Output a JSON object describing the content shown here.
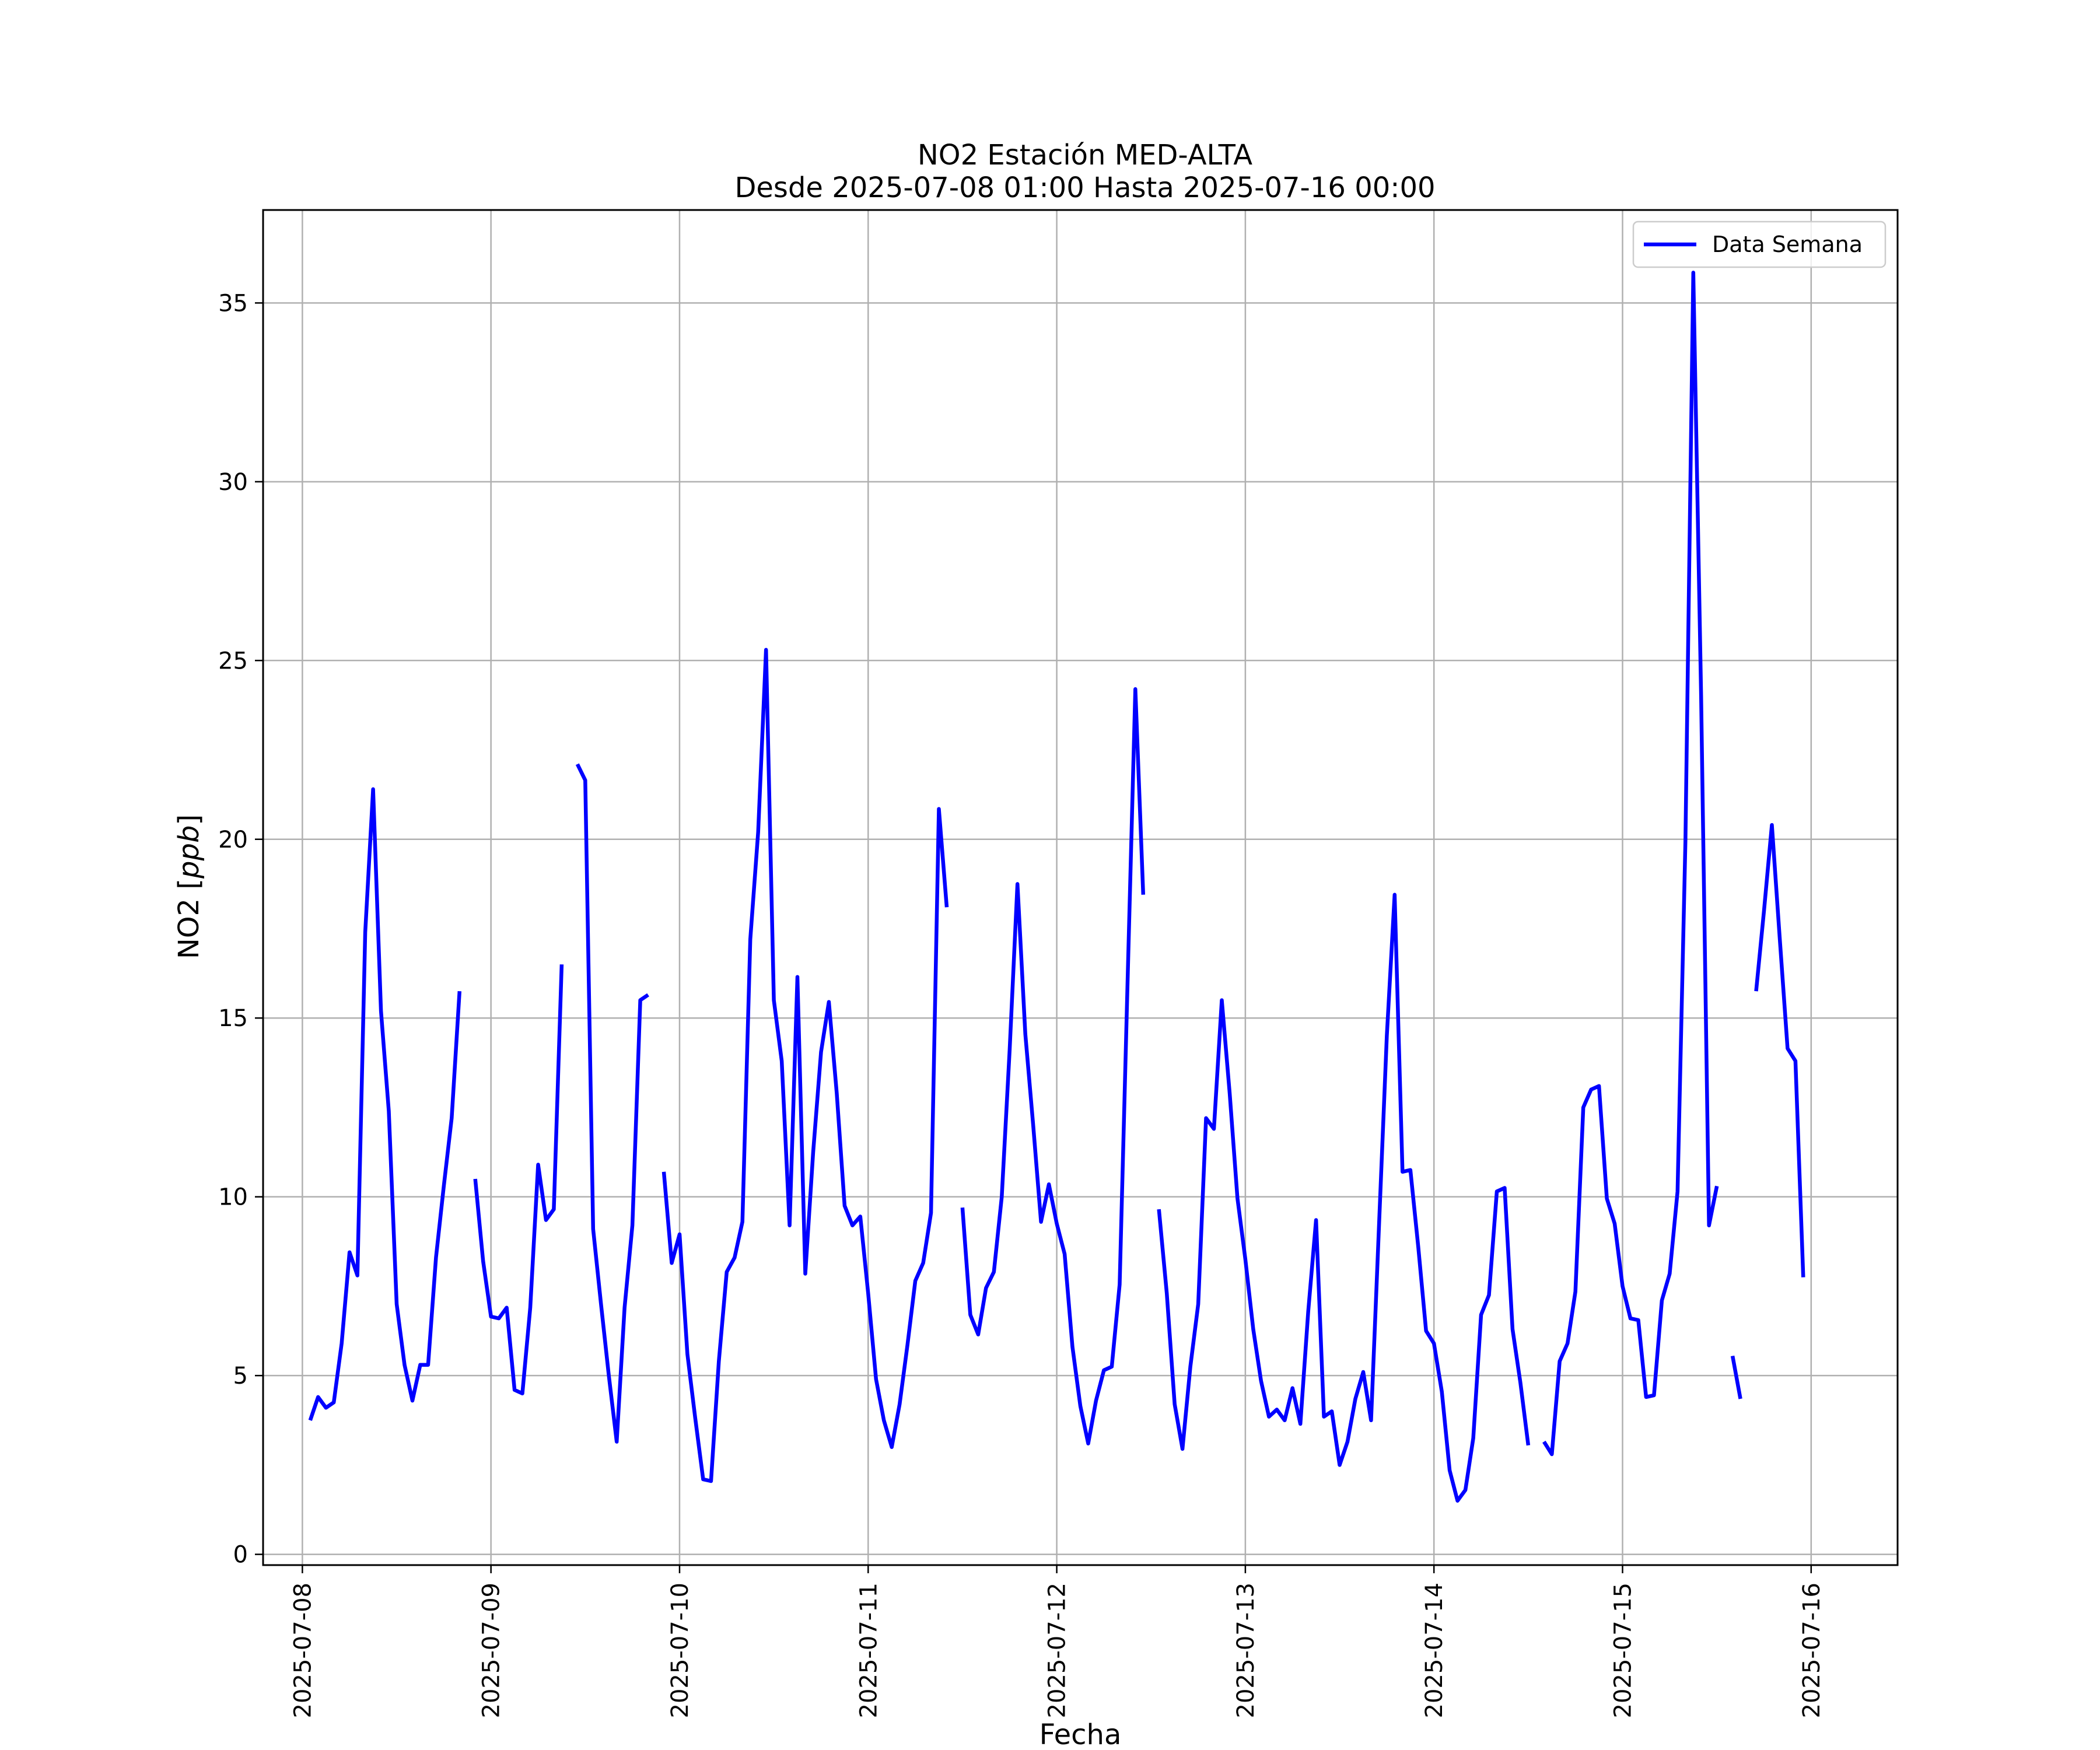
{
  "chart_data": {
    "type": "line",
    "title": "NO2 Estación MED-ALTA",
    "subtitle": "Desde 2025-07-08 01:00 Hasta 2025-07-16 00:00",
    "xlabel": "Fecha",
    "ylabel_text": "NO2 ",
    "ylabel_unit": "ppb",
    "xlim": [
      "2025-07-07 19:00",
      "2025-07-16 11:00"
    ],
    "ylim": [
      -0.3,
      37.6
    ],
    "x_ticks": [
      "2025-07-08",
      "2025-07-09",
      "2025-07-10",
      "2025-07-11",
      "2025-07-12",
      "2025-07-13",
      "2025-07-14",
      "2025-07-15",
      "2025-07-16"
    ],
    "y_ticks": [
      "0",
      "5",
      "10",
      "15",
      "20",
      "25",
      "30",
      "35"
    ],
    "y_tick_values": [
      0,
      5,
      10,
      15,
      20,
      25,
      30,
      35
    ],
    "grid": true,
    "legend_position": "top-right",
    "series": [
      {
        "name": "Data Semana",
        "color": "#0000ff",
        "start": "2025-07-08 01:00",
        "step_hours": 1,
        "values": [
          3.75,
          4.4,
          4.1,
          4.25,
          5.9,
          8.45,
          7.8,
          17.4,
          21.4,
          15.2,
          12.4,
          7.0,
          5.3,
          4.3,
          5.3,
          5.3,
          8.3,
          10.3,
          12.2,
          15.75,
          null,
          10.5,
          8.2,
          6.65,
          6.6,
          6.9,
          4.6,
          4.5,
          6.9,
          10.9,
          9.35,
          9.65,
          16.5,
          null,
          22.1,
          21.65,
          9.1,
          7.0,
          5.0,
          3.15,
          6.9,
          9.2,
          15.5,
          15.65,
          null,
          10.7,
          8.15,
          8.95,
          5.6,
          3.8,
          2.1,
          2.05,
          5.4,
          7.9,
          8.3,
          9.3,
          17.2,
          20.2,
          25.3,
          15.5,
          13.8,
          9.2,
          16.15,
          7.85,
          11.25,
          14.05,
          15.45,
          12.9,
          9.75,
          9.2,
          9.45,
          7.3,
          4.9,
          3.75,
          3.0,
          4.2,
          5.85,
          7.65,
          8.15,
          9.55,
          20.85,
          18.1,
          null,
          9.7,
          6.7,
          6.15,
          7.45,
          7.9,
          10.0,
          14.1,
          18.75,
          14.55,
          12.0,
          9.3,
          10.35,
          9.25,
          8.4,
          5.8,
          4.15,
          3.1,
          4.3,
          5.15,
          5.25,
          7.55,
          15.9,
          24.2,
          18.45,
          null,
          9.65,
          7.3,
          4.2,
          2.95,
          5.25,
          7.0,
          12.2,
          11.9,
          15.5,
          12.9,
          9.95,
          8.25,
          6.3,
          4.85,
          3.85,
          4.05,
          3.75,
          4.65,
          3.65,
          6.8,
          9.35,
          3.85,
          4.0,
          2.5,
          3.15,
          4.35,
          5.1,
          3.75,
          9.15,
          14.5,
          18.45,
          10.7,
          10.75,
          8.6,
          6.25,
          5.9,
          4.55,
          2.35,
          1.5,
          1.8,
          3.25,
          6.7,
          7.25,
          10.15,
          10.25,
          6.3,
          4.8,
          3.05,
          null,
          3.15,
          2.8,
          5.4,
          5.9,
          7.35,
          12.5,
          13.0,
          13.1,
          9.95,
          9.25,
          7.5,
          6.6,
          6.55,
          4.4,
          4.45,
          7.1,
          7.85,
          10.15,
          19.95,
          35.85,
          24.0,
          9.2,
          10.3,
          null,
          5.55,
          4.35,
          null,
          15.75,
          18.0,
          20.4,
          17.25,
          14.15,
          13.8,
          7.75
        ]
      }
    ]
  }
}
